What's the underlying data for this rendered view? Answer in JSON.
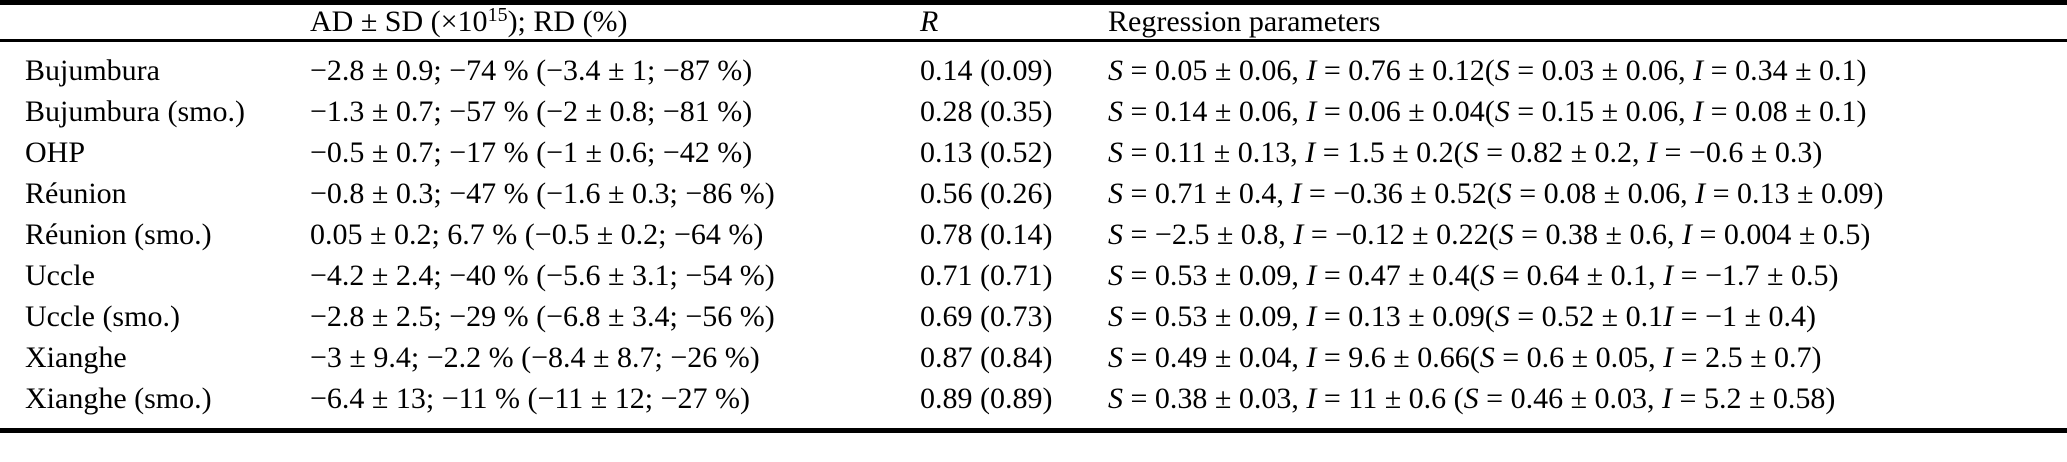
{
  "colors": {
    "text": "#000000",
    "background": "#ffffff",
    "rules": "#000000"
  },
  "table": {
    "header": {
      "station": "",
      "ad_sd_prefix": "AD ± SD (×10",
      "ad_sd_sup": "15",
      "ad_sd_suffix": "); RD (%)",
      "r": "R",
      "regression": "Regression parameters"
    },
    "rows": [
      {
        "station": "Bujumbura",
        "ad_sd": "−2.8 ± 0.9; −74 % (−3.4 ± 1; −87 %)",
        "r": "0.14 (0.09)",
        "regression": "S = 0.05 ± 0.06, I = 0.76 ± 0.12(S = 0.03 ± 0.06, I = 0.34 ± 0.1)"
      },
      {
        "station": "Bujumbura (smo.)",
        "ad_sd": "−1.3 ± 0.7; −57 % (−2 ± 0.8; −81 %)",
        "r": "0.28 (0.35)",
        "regression": "S = 0.14 ± 0.06, I = 0.06 ± 0.04(S = 0.15 ± 0.06, I = 0.08 ± 0.1)"
      },
      {
        "station": "OHP",
        "ad_sd": "−0.5 ± 0.7; −17 % (−1 ± 0.6; −42 %)",
        "r": "0.13 (0.52)",
        "regression": "S = 0.11 ± 0.13, I = 1.5 ± 0.2(S = 0.82 ± 0.2, I = −0.6 ± 0.3)"
      },
      {
        "station": "Réunion",
        "ad_sd": "−0.8 ± 0.3; −47 % (−1.6 ± 0.3; −86 %)",
        "r": "0.56 (0.26)",
        "regression": "S = 0.71 ± 0.4, I = −0.36 ± 0.52(S = 0.08 ± 0.06, I = 0.13 ± 0.09)"
      },
      {
        "station": "Réunion (smo.)",
        "ad_sd": "0.05 ± 0.2; 6.7 % (−0.5 ± 0.2; −64 %)",
        "r": "0.78 (0.14)",
        "regression": "S = −2.5 ± 0.8, I = −0.12 ± 0.22(S = 0.38 ± 0.6, I = 0.004 ± 0.5)"
      },
      {
        "station": "Uccle",
        "ad_sd": "−4.2 ± 2.4; −40 % (−5.6 ± 3.1; −54 %)",
        "r": "0.71 (0.71)",
        "regression": "S = 0.53 ± 0.09, I = 0.47 ± 0.4(S = 0.64 ± 0.1, I = −1.7 ± 0.5)"
      },
      {
        "station": "Uccle (smo.)",
        "ad_sd": "−2.8 ± 2.5; −29 % (−6.8 ± 3.4; −56 %)",
        "r": "0.69 (0.73)",
        "regression": "S = 0.53 ± 0.09, I = 0.13 ± 0.09(S = 0.52 ± 0.1I = −1 ± 0.4)"
      },
      {
        "station": "Xianghe",
        "ad_sd": "−3 ± 9.4; −2.2 % (−8.4 ± 8.7; −26 %)",
        "r": "0.87 (0.84)",
        "regression": "S = 0.49 ± 0.04, I = 9.6 ± 0.66(S = 0.6 ± 0.05, I = 2.5 ± 0.7)"
      },
      {
        "station": "Xianghe (smo.)",
        "ad_sd": "−6.4 ± 13; −11 % (−11 ± 12; −27 %)",
        "r": "0.89 (0.89)",
        "regression": "S = 0.38 ± 0.03, I = 11 ± 0.6 (S = 0.46 ± 0.03, I = 5.2 ± 0.58)"
      }
    ]
  }
}
